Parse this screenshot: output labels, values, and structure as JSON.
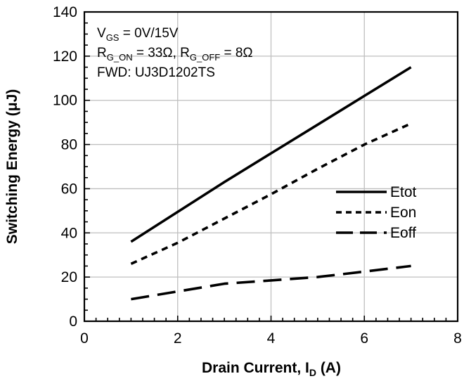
{
  "chart_data": {
    "type": "line",
    "title": "",
    "xlabel": {
      "main": "Drain Current, I",
      "sub": "D",
      "unit": " (A)"
    },
    "ylabel": "Switching Energy (μJ)",
    "xlim": [
      0,
      8
    ],
    "ylim": [
      0,
      140
    ],
    "xticks": [
      0,
      2,
      4,
      6,
      8
    ],
    "yticks": [
      0,
      20,
      40,
      60,
      80,
      100,
      120,
      140
    ],
    "grid": true,
    "legend_position": "right",
    "annotations": [
      {
        "parts": [
          {
            "t": "V"
          },
          {
            "t": "GS",
            "sub": true
          },
          {
            "t": " = 0V/15V"
          }
        ]
      },
      {
        "parts": [
          {
            "t": "R"
          },
          {
            "t": "G_ON",
            "sub": true
          },
          {
            "t": " = 33Ω, R"
          },
          {
            "t": "G_OFF",
            "sub": true
          },
          {
            "t": " = 8Ω"
          }
        ]
      },
      {
        "parts": [
          {
            "t": "FWD: UJ3D1202TS"
          }
        ]
      }
    ],
    "series": [
      {
        "name": "Etot",
        "style": "solid",
        "x": [
          1,
          2,
          3,
          4,
          5,
          6,
          7
        ],
        "y": [
          36,
          49.5,
          63,
          76,
          89,
          102,
          115
        ]
      },
      {
        "name": "Eon",
        "style": "short-dash",
        "x": [
          1,
          2,
          3,
          4,
          5,
          6,
          7
        ],
        "y": [
          26,
          35.5,
          46.5,
          57.5,
          69,
          80,
          89.5
        ]
      },
      {
        "name": "Eoff",
        "style": "long-dash",
        "x": [
          1,
          2,
          3,
          4,
          5,
          6,
          7
        ],
        "y": [
          10,
          13.5,
          17,
          18.5,
          20,
          22.5,
          25
        ]
      }
    ],
    "colors": {
      "line": "#000000",
      "grid": "#bfbfbf",
      "axis": "#000000"
    }
  }
}
